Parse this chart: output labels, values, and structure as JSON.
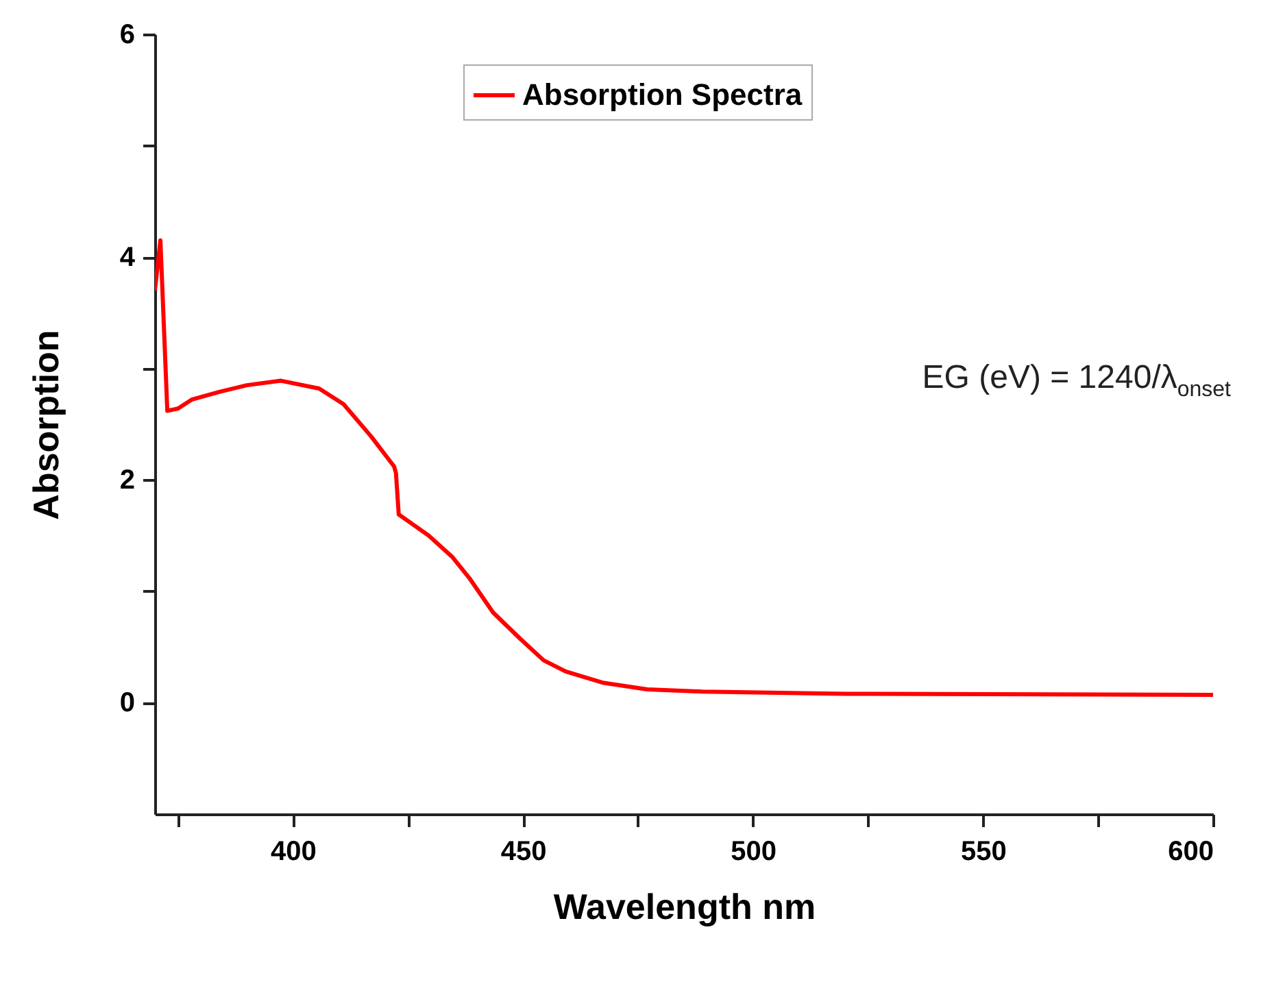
{
  "chart_data": {
    "type": "line",
    "xlabel": "Wavelength nm",
    "ylabel": "Absorption",
    "x": [
      370,
      371.2,
      372.7,
      375,
      378,
      384,
      390,
      397.4,
      405.7,
      411,
      417,
      422,
      422.4,
      423,
      429.5,
      434.6,
      438.5,
      443.5,
      449.5,
      454.5,
      459.3,
      467.3,
      477,
      489,
      520,
      600
    ],
    "series": [
      {
        "name": "Absorption Spectra",
        "color": "#ff0000",
        "values": [
          3.7,
          4.15,
          2.62,
          2.64,
          2.72,
          2.79,
          2.85,
          2.89,
          2.82,
          2.68,
          2.39,
          2.12,
          2.06,
          1.69,
          1.5,
          1.31,
          1.11,
          0.81,
          0.57,
          0.38,
          0.28,
          0.18,
          0.12,
          0.1,
          0.08,
          0.07
        ]
      }
    ],
    "xlim": [
      370,
      600
    ],
    "xticks": [
      {
        "value": 375,
        "label": null
      },
      400,
      {
        "value": 425,
        "label": null
      },
      450,
      {
        "value": 475,
        "label": null
      },
      500,
      {
        "value": 525,
        "label": null
      },
      550,
      {
        "value": 575,
        "label": null
      },
      600
    ],
    "ylim": [
      -1,
      6
    ],
    "yticks": [
      0,
      {
        "value": 1,
        "label": null
      },
      2,
      {
        "value": 3,
        "label": null
      },
      4,
      {
        "value": 5,
        "label": null
      },
      6
    ],
    "annotations": [
      "EG (eV) = 1240/λ$_{onset}$"
    ],
    "legend": "top",
    "grid": false,
    "marker": "none",
    "line_style": "solid"
  }
}
